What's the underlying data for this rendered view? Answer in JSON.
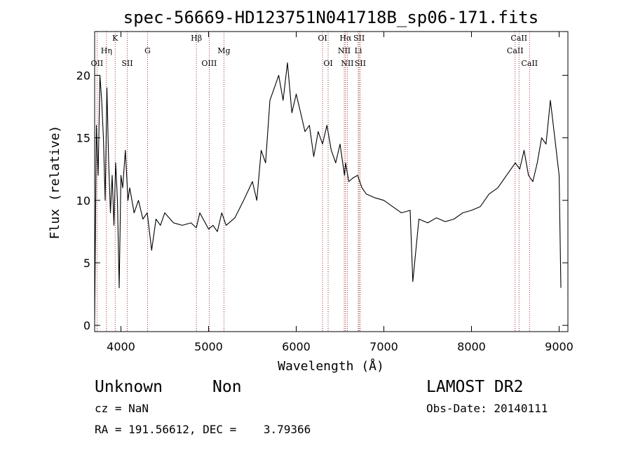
{
  "chart_data": {
    "type": "line",
    "title": "spec-56669-HD123751N041718B_sp06-171.fits",
    "xlabel": "Wavelength (Å)",
    "ylabel": "Flux (relative)",
    "xlim": [
      3700,
      9100
    ],
    "ylim": [
      -0.5,
      23.5
    ],
    "xticks": [
      4000,
      5000,
      6000,
      7000,
      8000,
      9000
    ],
    "yticks": [
      0,
      5,
      10,
      15,
      20
    ],
    "grid": false,
    "series": [
      {
        "x": [
          3700,
          3720,
          3740,
          3760,
          3780,
          3800,
          3820,
          3840,
          3860,
          3880,
          3900,
          3920,
          3940,
          3960,
          3980,
          4000,
          4020,
          4050,
          4080,
          4100,
          4150,
          4200,
          4250,
          4300,
          4350,
          4400,
          4450,
          4500,
          4600,
          4700,
          4800,
          4860,
          4900,
          5000,
          5050,
          5100,
          5150,
          5200,
          5300,
          5400,
          5500,
          5550,
          5600,
          5650,
          5700,
          5750,
          5800,
          5850,
          5900,
          5950,
          6000,
          6050,
          6100,
          6150,
          6200,
          6250,
          6300,
          6350,
          6400,
          6450,
          6500,
          6550,
          6563,
          6600,
          6650,
          6700,
          6750,
          6800,
          6900,
          7000,
          7100,
          7200,
          7300,
          7330,
          7400,
          7500,
          7600,
          7700,
          7800,
          7900,
          8000,
          8100,
          8200,
          8300,
          8400,
          8450,
          8500,
          8550,
          8600,
          8650,
          8700,
          8750,
          8800,
          8850,
          8900,
          8950,
          9000,
          9020
        ],
        "y": [
          0.5,
          16,
          12,
          20,
          18,
          15,
          10,
          19,
          13,
          9,
          12,
          8,
          13,
          10,
          3,
          12,
          11,
          14,
          10,
          11,
          9,
          10,
          8.5,
          9,
          6,
          8.5,
          8,
          9,
          8.2,
          8,
          8.2,
          7.8,
          9,
          7.7,
          8,
          7.5,
          9,
          8,
          8.6,
          10,
          11.5,
          10,
          14,
          13,
          18,
          19,
          20,
          18,
          21,
          17,
          18.5,
          17,
          15.5,
          16,
          13.5,
          15.5,
          14.5,
          16,
          14,
          13,
          14.5,
          12,
          13,
          11.5,
          11.8,
          12,
          11,
          10.5,
          10.2,
          10,
          9.5,
          9,
          9.2,
          3.5,
          8.5,
          8.2,
          8.6,
          8.3,
          8.5,
          9,
          9.2,
          9.5,
          10.5,
          11,
          12,
          12.5,
          13,
          12.5,
          14,
          12,
          11.5,
          13,
          15,
          14.5,
          18,
          15,
          12,
          3
        ]
      }
    ],
    "lines": [
      {
        "label": "OII",
        "wavelength": 3727,
        "row": 3
      },
      {
        "label": "Hη",
        "wavelength": 3835,
        "row": 2
      },
      {
        "label": "K",
        "wavelength": 3934,
        "row": 1
      },
      {
        "label": "SII",
        "wavelength": 4072,
        "row": 3
      },
      {
        "label": "G",
        "wavelength": 4304,
        "row": 2
      },
      {
        "label": "Hβ",
        "wavelength": 4861,
        "row": 1
      },
      {
        "label": "OIII",
        "wavelength": 5007,
        "row": 3
      },
      {
        "label": "Mg",
        "wavelength": 5175,
        "row": 2
      },
      {
        "label": "OI",
        "wavelength": 6300,
        "row": 1
      },
      {
        "label": "OI",
        "wavelength": 6364,
        "row": 3
      },
      {
        "label": "NII",
        "wavelength": 6548,
        "row": 2
      },
      {
        "label": "Hα",
        "wavelength": 6563,
        "row": 1
      },
      {
        "label": "NII",
        "wavelength": 6583,
        "row": 3
      },
      {
        "label": "SII",
        "wavelength": 6717,
        "row": 1
      },
      {
        "label": "Li",
        "wavelength": 6708,
        "row": 2
      },
      {
        "label": "SII",
        "wavelength": 6731,
        "row": 3
      },
      {
        "label": "CaII",
        "wavelength": 8498,
        "row": 2
      },
      {
        "label": "CaII",
        "wavelength": 8542,
        "row": 1
      },
      {
        "label": "CaII",
        "wavelength": 8662,
        "row": 3
      }
    ]
  },
  "footer": {
    "class_name": "Unknown",
    "subclass": "Non",
    "survey": "LAMOST DR2",
    "cz": "cz = NaN",
    "obs_date": "Obs-Date: 20140111",
    "coords": "RA = 191.56612, DEC =    3.79366"
  }
}
